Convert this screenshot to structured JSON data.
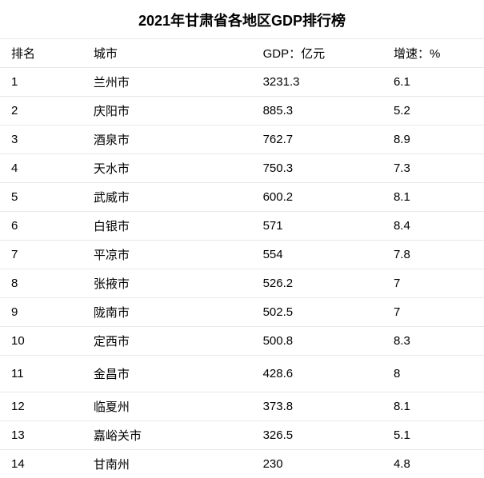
{
  "title": "2021年甘肃省各地区GDP排行榜",
  "table": {
    "columns": [
      "排名",
      "城市",
      "GDP：亿元",
      "增速：%"
    ],
    "column_widths_pct": [
      17,
      35,
      27,
      21
    ],
    "rows": [
      [
        "1",
        "兰州市",
        "3231.3",
        "6.1"
      ],
      [
        "2",
        "庆阳市",
        "885.3",
        "5.2"
      ],
      [
        "3",
        "酒泉市",
        "762.7",
        "8.9"
      ],
      [
        "4",
        "天水市",
        "750.3",
        "7.3"
      ],
      [
        "5",
        "武威市",
        "600.2",
        "8.1"
      ],
      [
        "6",
        "白银市",
        "571",
        "8.4"
      ],
      [
        "7",
        "平凉市",
        "554",
        "7.8"
      ],
      [
        "8",
        "张掖市",
        "526.2",
        "7"
      ],
      [
        "9",
        "陇南市",
        "502.5",
        "7"
      ],
      [
        "10",
        "定西市",
        "500.8",
        "8.3"
      ],
      [
        "11",
        "金昌市",
        "428.6",
        "8"
      ],
      [
        "12",
        "临夏州",
        "373.8",
        "8.1"
      ],
      [
        "13",
        "嘉峪关市",
        "326.5",
        "5.1"
      ],
      [
        "14",
        "甘南州",
        "230",
        "4.8"
      ]
    ],
    "tall_row_indices": [
      10
    ],
    "background_color": "#ffffff",
    "border_color": "#e8e8e8",
    "text_color": "#000000",
    "title_fontsize": 18,
    "cell_fontsize": 15
  }
}
